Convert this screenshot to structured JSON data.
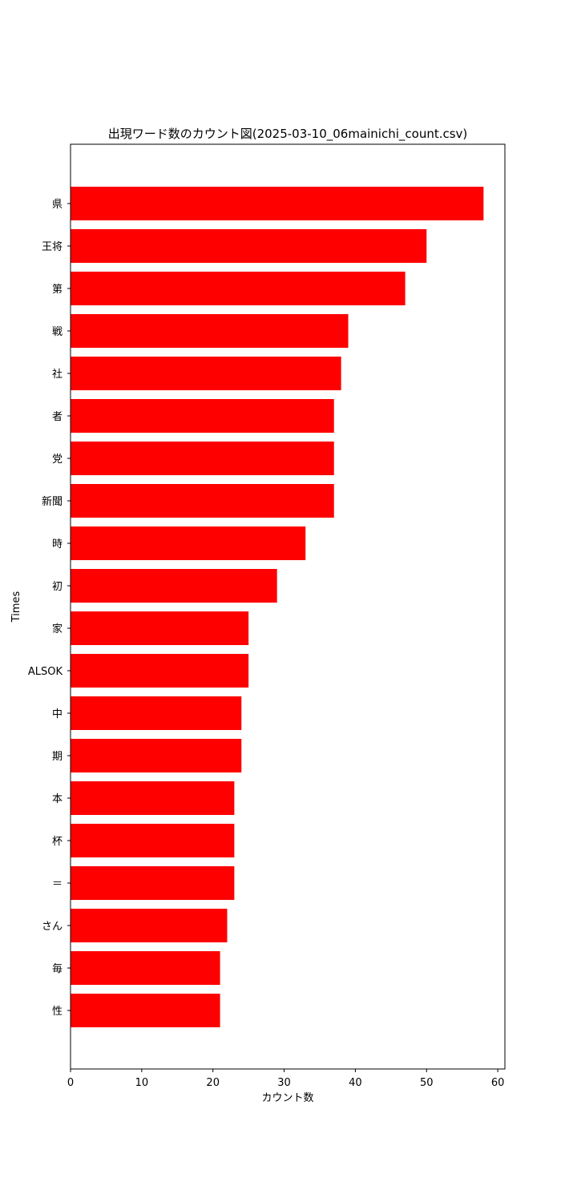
{
  "chart_data": {
    "type": "bar",
    "orientation": "horizontal",
    "title": "出現ワード数のカウント図(2025-03-10_06mainichi_count.csv)",
    "xlabel": "カウント数",
    "ylabel": "Times",
    "xlim": [
      0,
      61
    ],
    "xticks": [
      0,
      10,
      20,
      30,
      40,
      50,
      60
    ],
    "grid": false,
    "bar_color": "#ff0000",
    "categories": [
      "県",
      "王将",
      "第",
      "戦",
      "社",
      "者",
      "党",
      "新聞",
      "時",
      "初",
      "家",
      "ALSOK",
      "中",
      "期",
      "本",
      "杯",
      "＝",
      "さん",
      "毎",
      "性"
    ],
    "values": [
      58,
      50,
      47,
      39,
      38,
      37,
      37,
      37,
      33,
      29,
      25,
      25,
      24,
      24,
      23,
      23,
      23,
      22,
      21,
      21
    ]
  }
}
